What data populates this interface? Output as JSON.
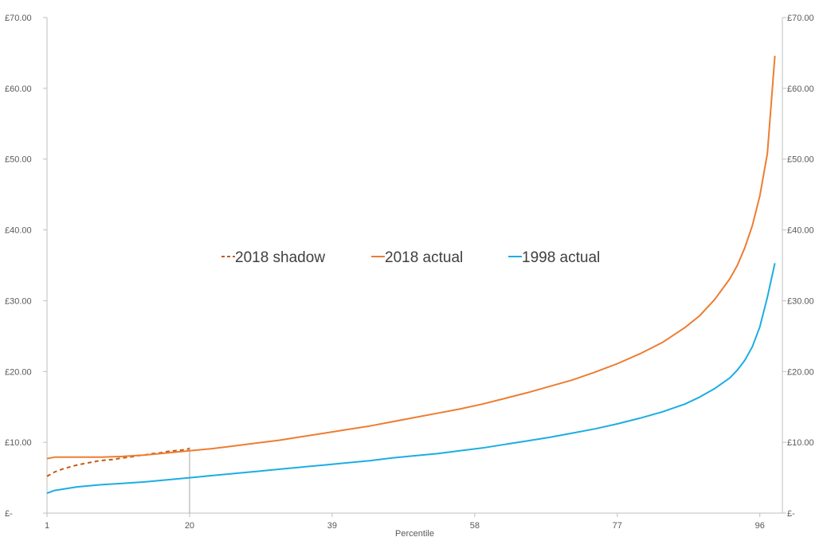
{
  "chart_data": {
    "type": "line",
    "title": "",
    "xlabel": "Percentile",
    "ylabel": "",
    "xlim": [
      1,
      99
    ],
    "ylim": [
      0,
      70
    ],
    "x_ticks": [
      "1",
      "20",
      "39",
      "58",
      "77",
      "96"
    ],
    "y_ticks_left": [
      "£-",
      "£10.00",
      "£20.00",
      "£30.00",
      "£40.00",
      "£50.00",
      "£60.00",
      "£70.00"
    ],
    "y_ticks_right": [
      "£-",
      "£10.00",
      "£20.00",
      "£30.00",
      "£40.00",
      "£50.00",
      "£60.00",
      "£70.00"
    ],
    "grid": false,
    "legend_position": "center",
    "reference_line_x": 20,
    "series": [
      {
        "name": "2018 shadow",
        "color": "#C55A11",
        "dash": true,
        "points": [
          [
            1,
            5.2
          ],
          [
            2,
            5.8
          ],
          [
            3,
            6.2
          ],
          [
            4,
            6.5
          ],
          [
            5,
            6.8
          ],
          [
            6,
            7.0
          ],
          [
            7,
            7.2
          ],
          [
            8,
            7.4
          ],
          [
            9,
            7.5
          ],
          [
            10,
            7.6
          ],
          [
            11,
            7.8
          ],
          [
            12,
            7.9
          ],
          [
            13,
            8.1
          ],
          [
            14,
            8.2
          ],
          [
            15,
            8.4
          ],
          [
            16,
            8.5
          ],
          [
            17,
            8.7
          ],
          [
            18,
            8.8
          ],
          [
            19,
            8.9
          ],
          [
            20,
            9.1
          ]
        ]
      },
      {
        "name": "2018 actual",
        "color": "#ED7D31",
        "dash": false,
        "points": [
          [
            1,
            7.7
          ],
          [
            2,
            7.9
          ],
          [
            5,
            7.9
          ],
          [
            8,
            7.9
          ],
          [
            11,
            8.0
          ],
          [
            14,
            8.2
          ],
          [
            17,
            8.5
          ],
          [
            20,
            8.8
          ],
          [
            23,
            9.1
          ],
          [
            26,
            9.5
          ],
          [
            29,
            9.9
          ],
          [
            32,
            10.3
          ],
          [
            35,
            10.8
          ],
          [
            38,
            11.3
          ],
          [
            41,
            11.8
          ],
          [
            44,
            12.3
          ],
          [
            47,
            12.9
          ],
          [
            50,
            13.5
          ],
          [
            53,
            14.1
          ],
          [
            56,
            14.7
          ],
          [
            59,
            15.4
          ],
          [
            62,
            16.2
          ],
          [
            65,
            17.0
          ],
          [
            68,
            17.9
          ],
          [
            71,
            18.8
          ],
          [
            74,
            19.9
          ],
          [
            77,
            21.1
          ],
          [
            80,
            22.5
          ],
          [
            83,
            24.1
          ],
          [
            86,
            26.2
          ],
          [
            88,
            27.9
          ],
          [
            90,
            30.2
          ],
          [
            92,
            33.1
          ],
          [
            93,
            35.0
          ],
          [
            94,
            37.5
          ],
          [
            95,
            40.6
          ],
          [
            96,
            44.8
          ],
          [
            97,
            50.8
          ],
          [
            98,
            64.6
          ]
        ]
      },
      {
        "name": "1998 actual",
        "color": "#1CADE4",
        "dash": false,
        "points": [
          [
            1,
            2.8
          ],
          [
            2,
            3.2
          ],
          [
            5,
            3.7
          ],
          [
            8,
            4.0
          ],
          [
            11,
            4.2
          ],
          [
            14,
            4.4
          ],
          [
            17,
            4.7
          ],
          [
            20,
            5.0
          ],
          [
            23,
            5.3
          ],
          [
            26,
            5.6
          ],
          [
            29,
            5.9
          ],
          [
            32,
            6.2
          ],
          [
            35,
            6.5
          ],
          [
            38,
            6.8
          ],
          [
            41,
            7.1
          ],
          [
            44,
            7.4
          ],
          [
            47,
            7.8
          ],
          [
            50,
            8.1
          ],
          [
            53,
            8.4
          ],
          [
            56,
            8.8
          ],
          [
            59,
            9.2
          ],
          [
            62,
            9.7
          ],
          [
            65,
            10.2
          ],
          [
            68,
            10.7
          ],
          [
            71,
            11.3
          ],
          [
            74,
            11.9
          ],
          [
            77,
            12.6
          ],
          [
            80,
            13.4
          ],
          [
            83,
            14.3
          ],
          [
            86,
            15.4
          ],
          [
            88,
            16.4
          ],
          [
            90,
            17.6
          ],
          [
            92,
            19.1
          ],
          [
            93,
            20.2
          ],
          [
            94,
            21.6
          ],
          [
            95,
            23.5
          ],
          [
            96,
            26.3
          ],
          [
            97,
            30.5
          ],
          [
            98,
            35.3
          ]
        ]
      }
    ]
  }
}
